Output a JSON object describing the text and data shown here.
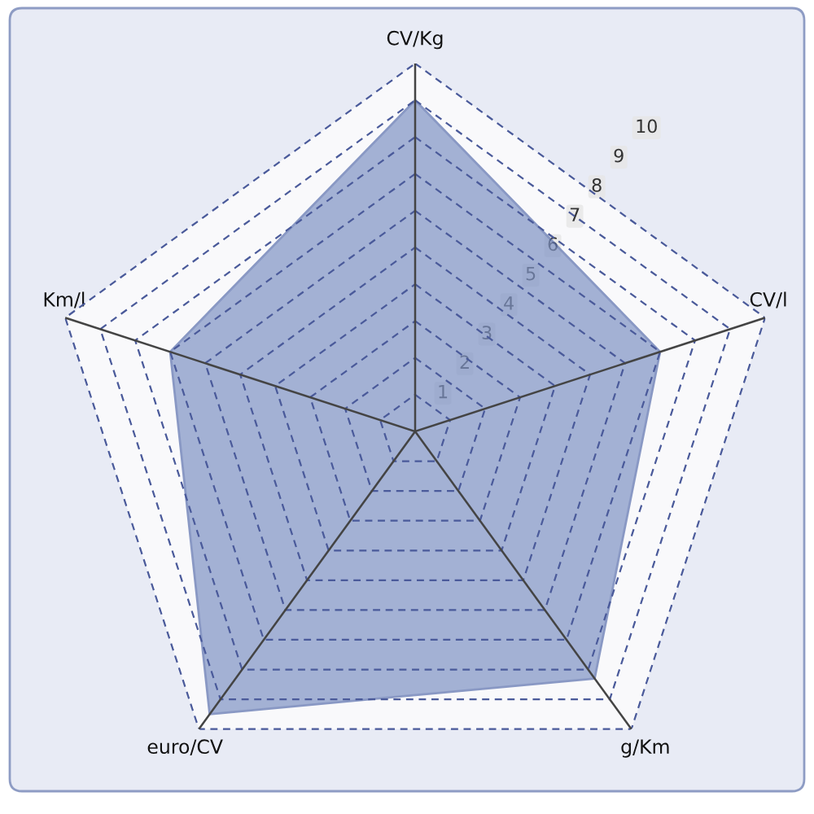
{
  "chart_data": {
    "type": "radar",
    "categories": [
      "CV/Kg",
      "CV/l",
      "g/Km",
      "euro/CV",
      "Km/l"
    ],
    "series": [
      {
        "color": "#7f93c4",
        "values": [
          9,
          7,
          8.3,
          9.5,
          7
        ]
      }
    ],
    "ylim": [
      0,
      10
    ],
    "yticks": [
      1,
      2,
      3,
      4,
      5,
      6,
      7,
      8,
      9,
      10
    ],
    "grid": true
  }
}
